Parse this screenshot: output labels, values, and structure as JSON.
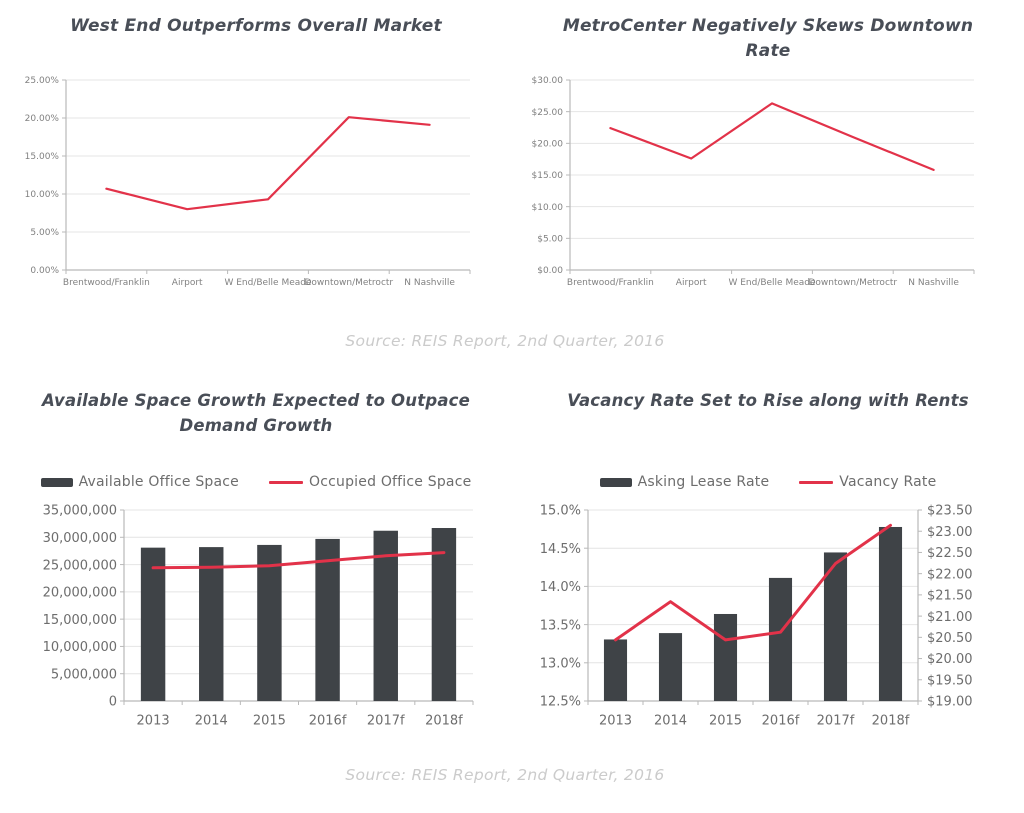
{
  "colors": {
    "accent_line": "#e23249",
    "bar": "#3f4347",
    "title": "#494e57",
    "axis_labels": "#7d7d7d",
    "source_text": "#cbcbcb"
  },
  "sources": {
    "top": "Source: REIS Report, 2nd Quarter, 2016",
    "bottom": "Source: REIS Report, 2nd Quarter, 2016"
  },
  "chart_data": [
    {
      "type": "line",
      "title": "West End Outperforms Overall Market",
      "categories": [
        "Brentwood/Franklin",
        "Airport",
        "W End/Belle Meade",
        "Downtown/Metroctr",
        "N Nashville"
      ],
      "y_left": {
        "min": 0,
        "max": 25,
        "step": 5,
        "format": "pct2",
        "tick_labels": [
          "0.00%",
          "5.00%",
          "10.00%",
          "15.00%",
          "20.00%",
          "25.00%"
        ]
      },
      "grid": true,
      "legend": false,
      "series": [
        {
          "type": "line",
          "axis": "left",
          "color": "#e23249",
          "values": [
            10.7,
            8.0,
            9.3,
            20.1,
            19.1
          ]
        }
      ]
    },
    {
      "type": "line",
      "title": "MetroCenter Negatively Skews Downtown Rate",
      "categories": [
        "Brentwood/Franklin",
        "Airport",
        "W End/Belle Meade",
        "Downtown/Metroctr",
        "N Nashville"
      ],
      "y_left": {
        "min": 0,
        "max": 30,
        "step": 5,
        "format": "usd2",
        "tick_labels": [
          "$0.00",
          "$5.00",
          "$10.00",
          "$15.00",
          "$20.00",
          "$25.00",
          "$30.00"
        ]
      },
      "grid": true,
      "legend": false,
      "series": [
        {
          "type": "line",
          "axis": "left",
          "color": "#e23249",
          "values": [
            22.4,
            17.6,
            26.3,
            21.0,
            15.8
          ]
        }
      ]
    },
    {
      "type": "bar-line",
      "title": "Available Space Growth Expected to Outpace Demand Growth",
      "categories": [
        "2013",
        "2014",
        "2015",
        "2016f",
        "2017f",
        "2018f"
      ],
      "y_left": {
        "min": 0,
        "max": 35000000,
        "step": 5000000,
        "format": "int",
        "tick_labels": [
          "0",
          "5,000,000",
          "10,000,000",
          "15,000,000",
          "20,000,000",
          "25,000,000",
          "30,000,000",
          "35,000,000"
        ]
      },
      "grid": true,
      "legend": true,
      "legend_position": "top",
      "series": [
        {
          "name": "Available Office Space",
          "type": "bar",
          "axis": "left",
          "color": "#3f4347",
          "values": [
            28100000,
            28200000,
            28600000,
            29700000,
            31200000,
            31700000
          ]
        },
        {
          "name": "Occupied Office Space",
          "type": "line",
          "axis": "left",
          "color": "#e23249",
          "values": [
            24400000,
            24500000,
            24800000,
            25700000,
            26600000,
            27200000
          ]
        }
      ]
    },
    {
      "type": "bar-line",
      "title": "Vacancy Rate Set to Rise along with Rents",
      "categories": [
        "2013",
        "2014",
        "2015",
        "2016f",
        "2017f",
        "2018f"
      ],
      "y_left": {
        "min": 12.5,
        "max": 15.0,
        "step": 0.5,
        "format": "pct1",
        "tick_labels": [
          "12.5%",
          "13.0%",
          "13.5%",
          "14.0%",
          "14.5%",
          "15.0%"
        ]
      },
      "y_right": {
        "min": 19.0,
        "max": 23.5,
        "step": 0.5,
        "format": "usd2",
        "tick_labels": [
          "$19.00",
          "$19.50",
          "$20.00",
          "$20.50",
          "$21.00",
          "$21.50",
          "$22.00",
          "$22.50",
          "$23.00",
          "$23.50"
        ]
      },
      "grid": true,
      "legend": true,
      "legend_position": "top",
      "series": [
        {
          "name": "Asking Lease Rate",
          "type": "bar",
          "axis": "right",
          "color": "#3f4347",
          "values": [
            20.45,
            20.6,
            21.05,
            21.9,
            22.5,
            23.1
          ]
        },
        {
          "name": "Vacancy Rate",
          "type": "line",
          "axis": "left",
          "color": "#e23249",
          "values": [
            13.3,
            13.8,
            13.3,
            13.4,
            14.3,
            14.8
          ]
        }
      ]
    }
  ]
}
